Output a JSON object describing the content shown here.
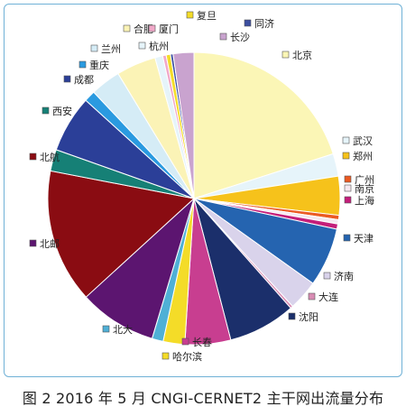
{
  "caption": "图 2 2016 年 5 月 CNGI-CERNET2 主干网出流量分布",
  "chart_data": {
    "type": "pie",
    "title": "",
    "start_angle_deg": 0,
    "direction": "clockwise",
    "slices": [
      {
        "name": "北京",
        "value": 21.0,
        "color": "#fbf6b6"
      },
      {
        "name": "武汉",
        "value": 2.6,
        "color": "#e6f4fa"
      },
      {
        "name": "郑州",
        "value": 4.5,
        "color": "#f6c21b"
      },
      {
        "name": "广州",
        "value": 0.5,
        "color": "#eb5a22"
      },
      {
        "name": "南京",
        "value": 0.5,
        "color": "#f5e8f0"
      },
      {
        "name": "上海",
        "value": 0.6,
        "color": "#c41e7a"
      },
      {
        "name": "天津",
        "value": 6.8,
        "color": "#2564b0"
      },
      {
        "name": "济南",
        "value": 3.5,
        "color": "#d9d3eb"
      },
      {
        "name": "大连",
        "value": 0.3,
        "color": "#d98cb4"
      },
      {
        "name": "沈阳",
        "value": 7.8,
        "color": "#1b2f6b"
      },
      {
        "name": "长春",
        "value": 5.3,
        "color": "#c83e90"
      },
      {
        "name": "哈尔滨",
        "value": 2.5,
        "color": "#f4dc28"
      },
      {
        "name": "北大",
        "value": 1.3,
        "color": "#4fb0d6"
      },
      {
        "name": "北邮",
        "value": 9.0,
        "color": "#5c1570"
      },
      {
        "name": "北航",
        "value": 15.5,
        "color": "#8a0c12"
      },
      {
        "name": "西安",
        "value": 2.5,
        "color": "#168076"
      },
      {
        "name": "成都",
        "value": 6.6,
        "color": "#2b3f98"
      },
      {
        "name": "重庆",
        "value": 1.3,
        "color": "#2a9ae0"
      },
      {
        "name": "兰州",
        "value": 3.5,
        "color": "#d5ecf6"
      },
      {
        "name": "合肥",
        "value": 4.6,
        "color": "#fbf3b6"
      },
      {
        "name": "杭州",
        "value": 0.9,
        "color": "#e6f4fa"
      },
      {
        "name": "厦门",
        "value": 0.4,
        "color": "#f1a8c8"
      },
      {
        "name": "复旦",
        "value": 0.5,
        "color": "#f4dc28"
      },
      {
        "name": "同济",
        "value": 0.3,
        "color": "#3c4fa0"
      },
      {
        "name": "长沙",
        "value": 2.4,
        "color": "#c9a3cf"
      }
    ]
  }
}
